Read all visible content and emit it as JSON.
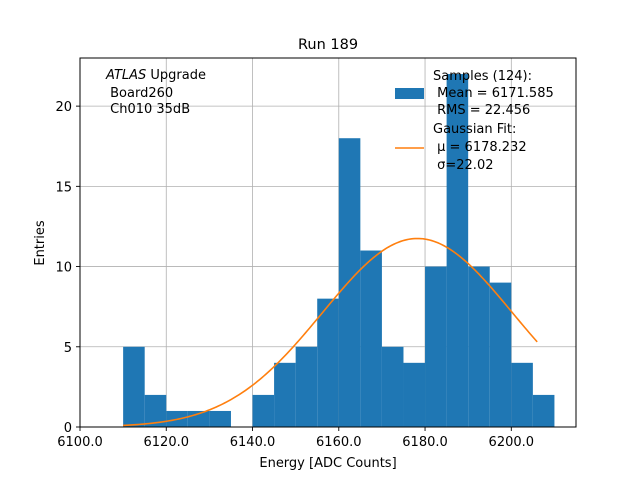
{
  "chart_data": {
    "type": "bar",
    "title": "Run 189",
    "xlabel": "Energy [ADC Counts]",
    "ylabel": "Entries",
    "xlim": [
      6100,
      6215
    ],
    "ylim": [
      0,
      23
    ],
    "grid": true,
    "x_ticks": [
      6100,
      6120,
      6140,
      6160,
      6180,
      6200
    ],
    "x_tick_labels": [
      "6100.0",
      "6120.0",
      "6140.0",
      "6160.0",
      "6180.0",
      "6200.0"
    ],
    "y_ticks": [
      0,
      5,
      10,
      15,
      20
    ],
    "y_tick_labels": [
      "0",
      "5",
      "10",
      "15",
      "20"
    ],
    "histogram": {
      "name": "Samples (124):",
      "color": "#1f77b4",
      "bin_edges": [
        6110,
        6115,
        6120,
        6125,
        6130,
        6135,
        6140,
        6145,
        6150,
        6155,
        6160,
        6165,
        6170,
        6175,
        6180,
        6185,
        6190,
        6195,
        6200,
        6205,
        6210
      ],
      "counts": [
        5,
        2,
        1,
        1,
        1,
        0,
        2,
        4,
        5,
        8,
        18,
        11,
        5,
        4,
        10,
        22,
        10,
        9,
        4,
        2
      ]
    },
    "fit": {
      "name": "Gaussian Fit:",
      "color": "#ff7f0e",
      "mu": 6178.232,
      "sigma": 22.02,
      "amplitude": 11.75,
      "x_range": [
        6110,
        6206
      ]
    },
    "annotation": {
      "italic": "ATLAS",
      "rest": " Upgrade",
      "line2": " Board260",
      "line3": " Ch010 35dB"
    },
    "legend": {
      "placement": "top-right",
      "hist_lines": [
        "Samples (124):",
        " Mean = 6171.585",
        " RMS = 22.456"
      ],
      "fit_lines": [
        "Gaussian Fit:",
        " μ = 6178.232",
        " σ=22.02"
      ]
    },
    "colors": {
      "grid": "#b0b0b0",
      "axis": "#000000"
    }
  }
}
